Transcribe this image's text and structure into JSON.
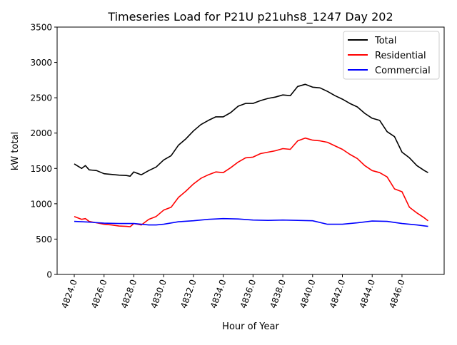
{
  "chart_data": {
    "type": "line",
    "title": "Timeseries Load for P21U p21uhs8_1247  Day 202",
    "xlabel": "Hour of Year",
    "ylabel": "kW total",
    "xlim": [
      4822.85,
      4848.83
    ],
    "ylim": [
      0,
      3500
    ],
    "xticks": [
      4824,
      4826,
      4828,
      4830,
      4832,
      4834,
      4836,
      4838,
      4840,
      4842,
      4844,
      4846
    ],
    "xtick_labels": [
      "4824.0",
      "4826.0",
      "4828.0",
      "4830.0",
      "4832.0",
      "4834.0",
      "4836.0",
      "4838.0",
      "4840.0",
      "4842.0",
      "4844.0",
      "4846.0"
    ],
    "yticks": [
      0,
      500,
      1000,
      1500,
      2000,
      2500,
      3000,
      3500
    ],
    "ytick_labels": [
      "0",
      "500",
      "1000",
      "1500",
      "2000",
      "2500",
      "3000",
      "3500"
    ],
    "grid": false,
    "legend_position": "top-right",
    "series": [
      {
        "name": "Total",
        "color": "#000000",
        "x": [
          4824,
          4824.5,
          4824.75,
          4825,
          4825.5,
          4826,
          4826.5,
          4827,
          4827.5,
          4827.75,
          4828,
          4828.5,
          4829,
          4829.5,
          4830,
          4830.5,
          4831,
          4831.5,
          4832,
          4832.5,
          4833,
          4833.5,
          4834,
          4834.5,
          4835,
          4835.5,
          4836,
          4836.5,
          4837,
          4837.5,
          4838,
          4838.5,
          4839,
          4839.5,
          4840,
          4840.5,
          4841,
          4841.5,
          4842,
          4842.5,
          4843,
          4843.5,
          4844,
          4844.5,
          4845,
          4845.5,
          4846,
          4846.5,
          4847,
          4847.5,
          4847.75
        ],
        "y": [
          1564,
          1500,
          1540,
          1480,
          1470,
          1425,
          1415,
          1405,
          1400,
          1390,
          1450,
          1410,
          1470,
          1520,
          1620,
          1680,
          1830,
          1920,
          2030,
          2120,
          2180,
          2230,
          2230,
          2290,
          2380,
          2420,
          2420,
          2460,
          2490,
          2510,
          2540,
          2530,
          2660,
          2690,
          2650,
          2640,
          2590,
          2530,
          2480,
          2420,
          2370,
          2280,
          2210,
          2180,
          2020,
          1950,
          1730,
          1650,
          1540,
          1470,
          1440
        ]
      },
      {
        "name": "Residential",
        "color": "#ff0000",
        "x": [
          4824,
          4824.5,
          4824.75,
          4825,
          4825.5,
          4826,
          4826.5,
          4827,
          4827.5,
          4827.75,
          4828,
          4828.5,
          4829,
          4829.5,
          4830,
          4830.5,
          4831,
          4831.5,
          4832,
          4832.5,
          4833,
          4833.5,
          4834,
          4834.5,
          4835,
          4835.5,
          4836,
          4836.5,
          4837,
          4837.5,
          4838,
          4838.5,
          4839,
          4839.5,
          4840,
          4840.5,
          4841,
          4841.5,
          4842,
          4842.5,
          4843,
          4843.5,
          4844,
          4844.5,
          4845,
          4845.5,
          4846,
          4846.5,
          4847,
          4847.5,
          4847.75
        ],
        "y": [
          820,
          780,
          790,
          750,
          730,
          710,
          700,
          685,
          680,
          675,
          720,
          700,
          780,
          820,
          910,
          950,
          1090,
          1180,
          1280,
          1360,
          1410,
          1450,
          1440,
          1510,
          1590,
          1650,
          1660,
          1710,
          1730,
          1750,
          1780,
          1770,
          1890,
          1930,
          1900,
          1890,
          1870,
          1820,
          1770,
          1700,
          1640,
          1540,
          1470,
          1440,
          1380,
          1210,
          1170,
          950,
          870,
          800,
          760
        ]
      },
      {
        "name": "Commercial",
        "color": "#0000ff",
        "x": [
          4824,
          4825,
          4826,
          4827,
          4828,
          4829,
          4829.5,
          4830,
          4831,
          4832,
          4833,
          4834,
          4835,
          4836,
          4837,
          4838,
          4839,
          4840,
          4841,
          4842,
          4843,
          4844,
          4845,
          4846,
          4847,
          4847.75
        ],
        "y": [
          750,
          740,
          725,
          720,
          720,
          700,
          700,
          710,
          745,
          760,
          780,
          790,
          785,
          770,
          765,
          770,
          765,
          760,
          710,
          710,
          730,
          755,
          750,
          720,
          700,
          680
        ]
      }
    ]
  }
}
